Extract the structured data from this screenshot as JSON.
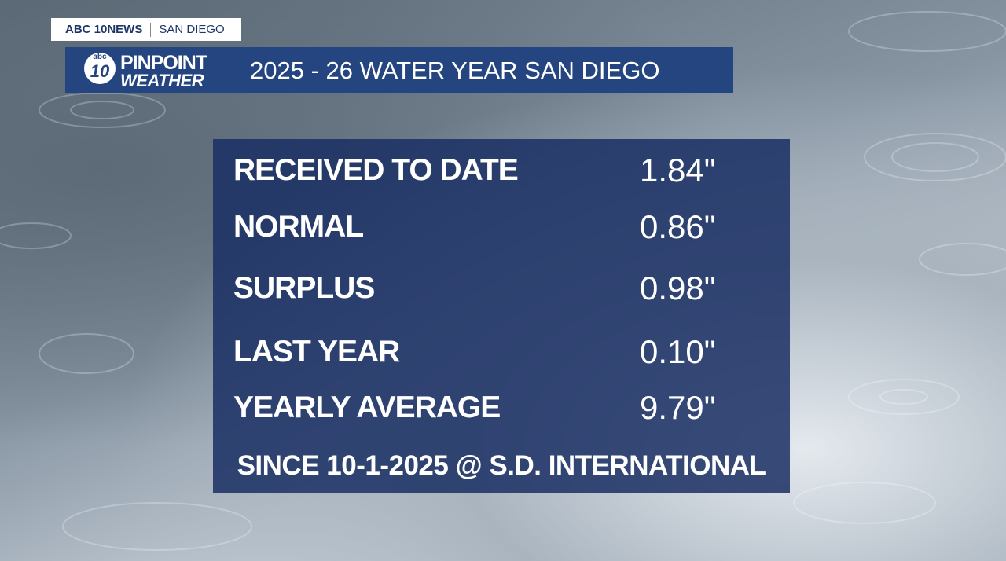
{
  "header": {
    "network": "ABC 10NEWS",
    "location": "SAN DIEGO",
    "logo": {
      "badge_top": "abc",
      "badge_number": "10",
      "line1": "PINPOINT",
      "line2": "WEATHER"
    },
    "title": "2025 - 26 WATER YEAR SAN DIEGO"
  },
  "table": {
    "rows": [
      [
        "RECEIVED TO DATE",
        "1.84\""
      ],
      [
        "NORMAL",
        "0.86\""
      ],
      [
        "SURPLUS",
        "0.98\""
      ],
      [
        "LAST YEAR",
        "0.10\""
      ],
      [
        "YEARLY AVERAGE",
        "9.79\""
      ]
    ]
  },
  "footer": "SINCE 10-1-2025 @ S.D. INTERNATIONAL"
}
